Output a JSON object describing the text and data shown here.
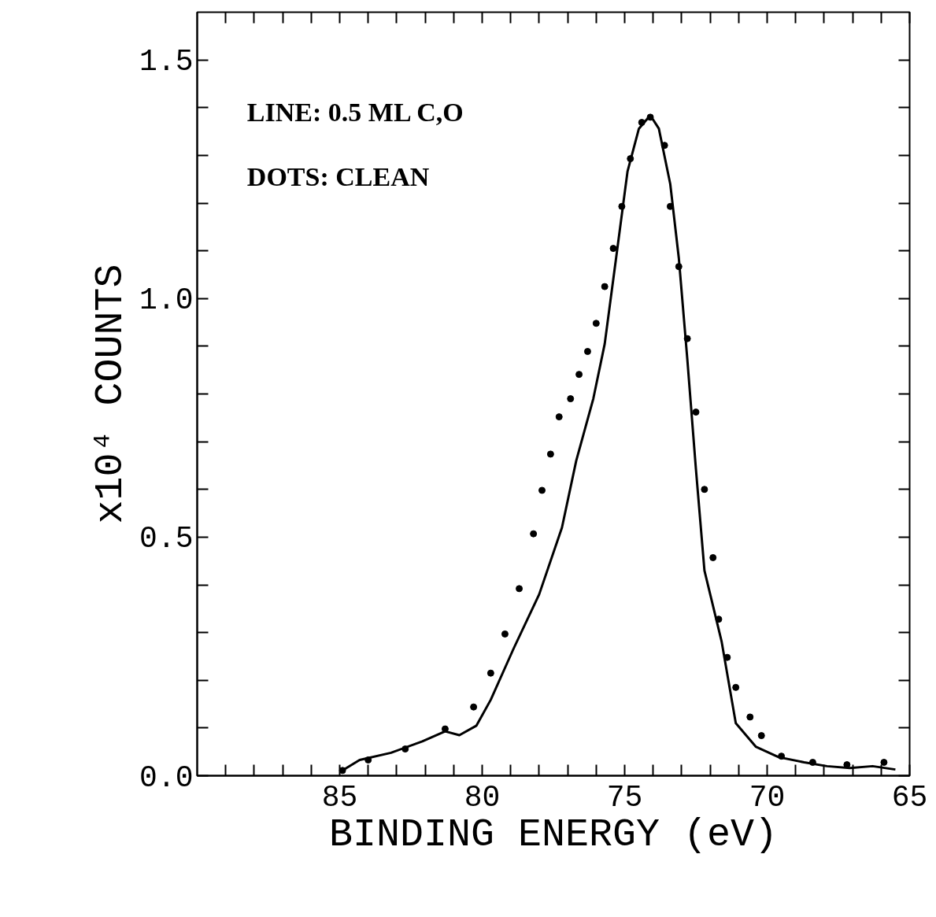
{
  "chart_data": {
    "type": "line",
    "xlabel": "BINDING ENERGY (eV)",
    "ylabel": "x10⁴ COUNTS",
    "annotations": [
      "LINE: 0.5 ML C,O",
      "DOTS: CLEAN"
    ],
    "xlim": [
      90,
      65
    ],
    "ylim": [
      0,
      1.6
    ],
    "xticks": [
      {
        "value": 89,
        "label": null
      },
      {
        "value": 88,
        "label": null
      },
      {
        "value": 87,
        "label": null
      },
      {
        "value": 86,
        "label": null
      },
      85,
      {
        "value": 84,
        "label": null
      },
      {
        "value": 83,
        "label": null
      },
      {
        "value": 82,
        "label": null
      },
      {
        "value": 81,
        "label": null
      },
      80,
      {
        "value": 79,
        "label": null
      },
      {
        "value": 78,
        "label": null
      },
      {
        "value": 77,
        "label": null
      },
      {
        "value": 76,
        "label": null
      },
      75,
      {
        "value": 74,
        "label": null
      },
      {
        "value": 73,
        "label": null
      },
      {
        "value": 72,
        "label": null
      },
      {
        "value": 71,
        "label": null
      },
      70,
      {
        "value": 69,
        "label": null
      },
      {
        "value": 68,
        "label": null
      },
      {
        "value": 67,
        "label": null
      },
      {
        "value": 66,
        "label": null
      },
      65
    ],
    "yticks": [
      {
        "value": 0,
        "label": "0.0"
      },
      {
        "value": 0.1,
        "label": null
      },
      {
        "value": 0.2,
        "label": null
      },
      {
        "value": 0.3,
        "label": null
      },
      {
        "value": 0.4,
        "label": null
      },
      0.5,
      {
        "value": 0.6,
        "label": null
      },
      {
        "value": 0.7,
        "label": null
      },
      {
        "value": 0.8,
        "label": null
      },
      {
        "value": 0.9,
        "label": null
      },
      {
        "value": 1,
        "label": "1.0"
      },
      {
        "value": 1.1,
        "label": null
      },
      {
        "value": 1.2,
        "label": null
      },
      {
        "value": 1.3,
        "label": null
      },
      {
        "value": 1.4,
        "label": null
      },
      1.5
    ],
    "grid": false,
    "series": [
      {
        "color": "#000000",
        "marker": "none",
        "line_style": "solid",
        "x": [
          84.9,
          84.3,
          83.2,
          82.1,
          81.3,
          80.8,
          80.2,
          79.7,
          78.9,
          78.0,
          77.2,
          76.7,
          76.1,
          75.7,
          75.3,
          74.9,
          74.5,
          74.1,
          73.8,
          73.4,
          73.1,
          72.8,
          72.5,
          72.2,
          71.6,
          71.1,
          70.4,
          69.6,
          68.7,
          67.9,
          67.1,
          66.3,
          65.5
        ],
        "values": [
          0.011,
          0.033,
          0.048,
          0.072,
          0.093,
          0.085,
          0.105,
          0.159,
          0.266,
          0.38,
          0.52,
          0.66,
          0.79,
          0.905,
          1.085,
          1.266,
          1.356,
          1.384,
          1.356,
          1.24,
          1.085,
          0.872,
          0.643,
          0.43,
          0.282,
          0.11,
          0.061,
          0.039,
          0.028,
          0.02,
          0.016,
          0.02,
          0.013
        ]
      },
      {
        "type": "scatter",
        "color": "#000000",
        "marker": "circle",
        "x": [
          84.9,
          84.0,
          82.7,
          81.3,
          80.3,
          79.7,
          79.2,
          78.7,
          78.2,
          77.9,
          77.6,
          77.3,
          76.9,
          76.6,
          76.3,
          76.0,
          75.7,
          75.4,
          75.1,
          74.8,
          74.4,
          74.1,
          73.6,
          73.4,
          73.1,
          72.8,
          72.5,
          72.2,
          71.9,
          71.7,
          71.4,
          71.1,
          70.6,
          70.2,
          69.5,
          68.4,
          67.2,
          65.9
        ],
        "values": [
          0.011,
          0.033,
          0.056,
          0.098,
          0.144,
          0.215,
          0.297,
          0.392,
          0.507,
          0.598,
          0.674,
          0.752,
          0.79,
          0.841,
          0.889,
          0.948,
          1.025,
          1.105,
          1.193,
          1.293,
          1.369,
          1.38,
          1.321,
          1.193,
          1.067,
          0.916,
          0.762,
          0.6,
          0.457,
          0.328,
          0.248,
          0.185,
          0.123,
          0.084,
          0.041,
          0.028,
          0.023,
          0.028
        ]
      }
    ]
  }
}
